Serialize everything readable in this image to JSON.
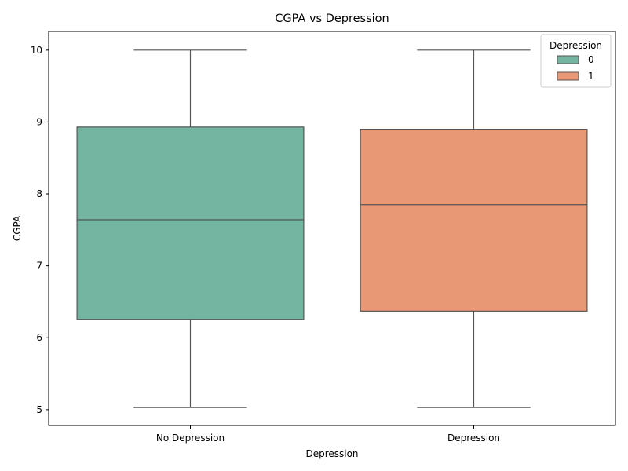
{
  "chart_data": {
    "type": "box",
    "title": "CGPA vs Depression",
    "xlabel": "Depression",
    "ylabel": "CGPA",
    "ylim": [
      4.78,
      10.26
    ],
    "yticks": [
      5,
      6,
      7,
      8,
      9,
      10
    ],
    "categories": [
      "No Depression",
      "Depression"
    ],
    "boxes": [
      {
        "category": "No Depression",
        "min": 5.03,
        "q1": 6.25,
        "median": 7.64,
        "q3": 8.93,
        "max": 10.0,
        "color": "#73b5a1"
      },
      {
        "category": "Depression",
        "min": 5.03,
        "q1": 6.37,
        "median": 7.85,
        "q3": 8.9,
        "max": 10.0,
        "color": "#e99875"
      }
    ],
    "legend": {
      "title": "Depression",
      "position": "top-right",
      "entries": [
        {
          "label": "0",
          "color": "#73b5a1"
        },
        {
          "label": "1",
          "color": "#e99875"
        }
      ]
    },
    "grid": false
  }
}
